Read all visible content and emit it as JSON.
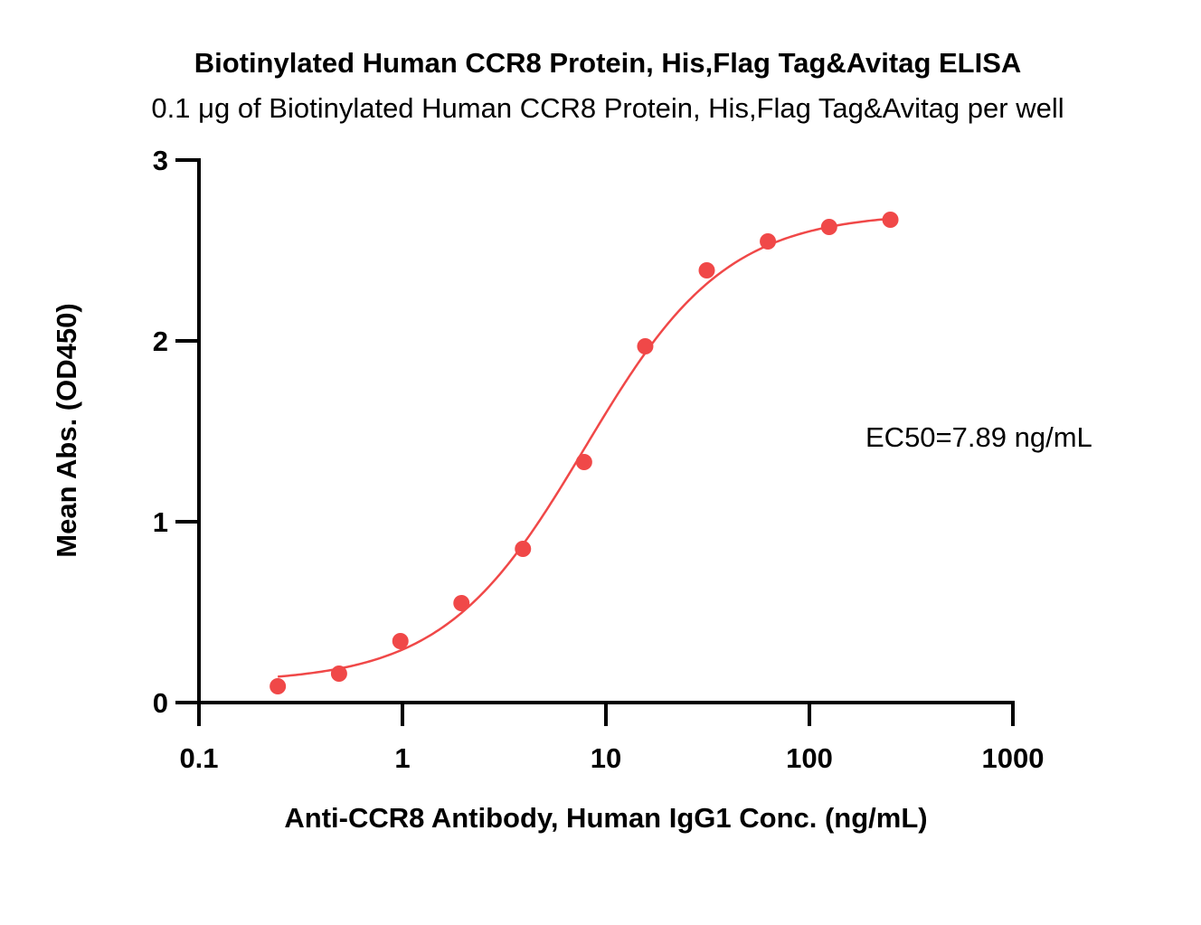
{
  "chart_data": {
    "type": "scatter",
    "title": "Biotinylated Human CCR8 Protein, His,Flag Tag&Avitag ELISA",
    "subtitle": "0.1 μg of Biotinylated Human CCR8 Protein, His,Flag Tag&Avitag per well",
    "xlabel": "Anti-CCR8 Antibody, Human IgG1 Conc. (ng/mL)",
    "ylabel": "Mean Abs. (OD450)",
    "x_scale": "log",
    "xlim": [
      0.1,
      1000
    ],
    "ylim": [
      0,
      3
    ],
    "x_ticks": [
      {
        "value": 0.1,
        "label": "0.1"
      },
      {
        "value": 1,
        "label": "1"
      },
      {
        "value": 10,
        "label": "10"
      },
      {
        "value": 100,
        "label": "100"
      },
      {
        "value": 1000,
        "label": "1000"
      }
    ],
    "y_ticks": [
      {
        "value": 0,
        "label": "0"
      },
      {
        "value": 1,
        "label": "1"
      },
      {
        "value": 2,
        "label": "2"
      },
      {
        "value": 3,
        "label": "3"
      }
    ],
    "grid": false,
    "color": "#f04848",
    "series": [
      {
        "x": [
          0.244,
          0.488,
          0.977,
          1.95,
          3.91,
          7.81,
          15.6,
          31.3,
          62.5,
          125,
          250
        ],
        "y": [
          0.09,
          0.16,
          0.34,
          0.55,
          0.85,
          1.33,
          1.97,
          2.39,
          2.55,
          2.63,
          2.67
        ]
      }
    ],
    "fit": {
      "model": "4PL",
      "bottom": 0.11,
      "top": 2.71,
      "ec50": 7.89,
      "hill": 1.25
    },
    "annotation": "EC50=7.89 ng/mL"
  }
}
